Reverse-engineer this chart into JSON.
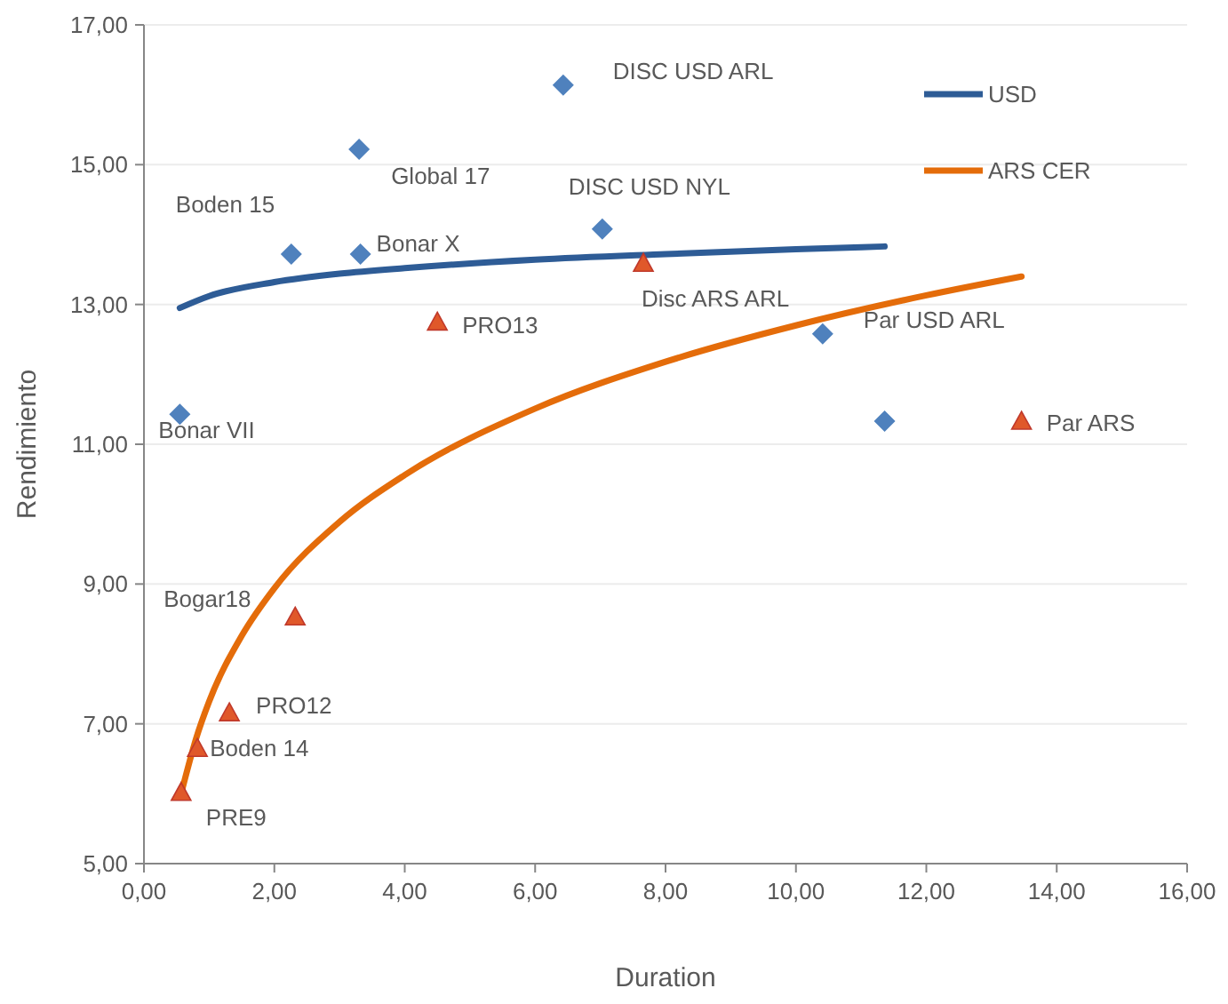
{
  "chart_data": {
    "type": "scatter",
    "xlabel": "Duration",
    "ylabel": "Rendimiento",
    "xlim": [
      0,
      16
    ],
    "ylim": [
      5,
      17
    ],
    "xticks": [
      {
        "value": 0,
        "label": "0,00"
      },
      {
        "value": 2,
        "label": "2,00"
      },
      {
        "value": 4,
        "label": "4,00"
      },
      {
        "value": 6,
        "label": "6,00"
      },
      {
        "value": 8,
        "label": "8,00"
      },
      {
        "value": 10,
        "label": "10,00"
      },
      {
        "value": 12,
        "label": "12,00"
      },
      {
        "value": 14,
        "label": "14,00"
      },
      {
        "value": 16,
        "label": "16,00"
      }
    ],
    "yticks": [
      {
        "value": 5,
        "label": "5,00"
      },
      {
        "value": 7,
        "label": "7,00"
      },
      {
        "value": 9,
        "label": "9,00"
      },
      {
        "value": 11,
        "label": "11,00"
      },
      {
        "value": 13,
        "label": "13,00"
      },
      {
        "value": 15,
        "label": "15,00"
      },
      {
        "value": 17,
        "label": "17,00"
      }
    ],
    "grid": "y",
    "legend": "top right",
    "series": [
      {
        "marker": "diamond",
        "color": "#4f81bd",
        "x": [
          0.55,
          2.26,
          3.32,
          3.3,
          6.43,
          7.03,
          10.41,
          11.36
        ],
        "values": [
          11.43,
          13.72,
          13.72,
          15.22,
          16.14,
          14.08,
          12.58,
          11.33
        ]
      },
      {
        "marker": "triangle",
        "color": "#e0582a",
        "x": [
          0.57,
          0.82,
          1.31,
          2.32,
          4.5,
          7.66,
          13.46
        ],
        "values": [
          6.02,
          6.65,
          7.16,
          8.53,
          12.75,
          13.59,
          11.33
        ]
      },
      {
        "type": "line",
        "name": "USD",
        "marker": "none",
        "color": "#2e5c96",
        "x": [
          0.55,
          1,
          2,
          3,
          4,
          6,
          8,
          10,
          11.36
        ],
        "values": [
          12.95,
          13.12,
          13.32,
          13.44,
          13.52,
          13.64,
          13.72,
          13.79,
          13.83
        ]
      },
      {
        "type": "line",
        "name": "ARS CER",
        "marker": "none",
        "color": "#e46c0a",
        "x": [
          0.57,
          0.8,
          1,
          1.5,
          2,
          3,
          4,
          6,
          8,
          10,
          12,
          13.46
        ],
        "values": [
          6.0,
          6.79,
          7.32,
          8.26,
          8.94,
          9.89,
          10.56,
          11.51,
          12.18,
          12.7,
          13.13,
          13.4
        ]
      }
    ],
    "annotations": [
      {
        "text": "Bonar VII",
        "x": 0.55,
        "y": 11.43
      },
      {
        "text": "Boden 15",
        "x": 2.26,
        "y": 13.72
      },
      {
        "text": "Bonar X",
        "x": 3.32,
        "y": 13.72
      },
      {
        "text": "Global 17",
        "x": 3.3,
        "y": 15.22
      },
      {
        "text": "DISC USD ARL",
        "x": 6.43,
        "y": 16.14
      },
      {
        "text": "DISC USD NYL",
        "x": 7.03,
        "y": 14.08
      },
      {
        "text": "Par USD ARL",
        "x": 10.41,
        "y": 12.58
      },
      {
        "text": "PRE9",
        "x": 0.57,
        "y": 6.02
      },
      {
        "text": "Boden 14",
        "x": 0.82,
        "y": 6.65
      },
      {
        "text": "PRO12",
        "x": 1.31,
        "y": 7.16
      },
      {
        "text": "Bogar18",
        "x": 2.32,
        "y": 8.53
      },
      {
        "text": "PRO13",
        "x": 4.5,
        "y": 12.75
      },
      {
        "text": "Disc ARS ARL",
        "x": 7.66,
        "y": 13.59
      },
      {
        "text": "Par ARS",
        "x": 13.46,
        "y": 11.33
      }
    ]
  }
}
